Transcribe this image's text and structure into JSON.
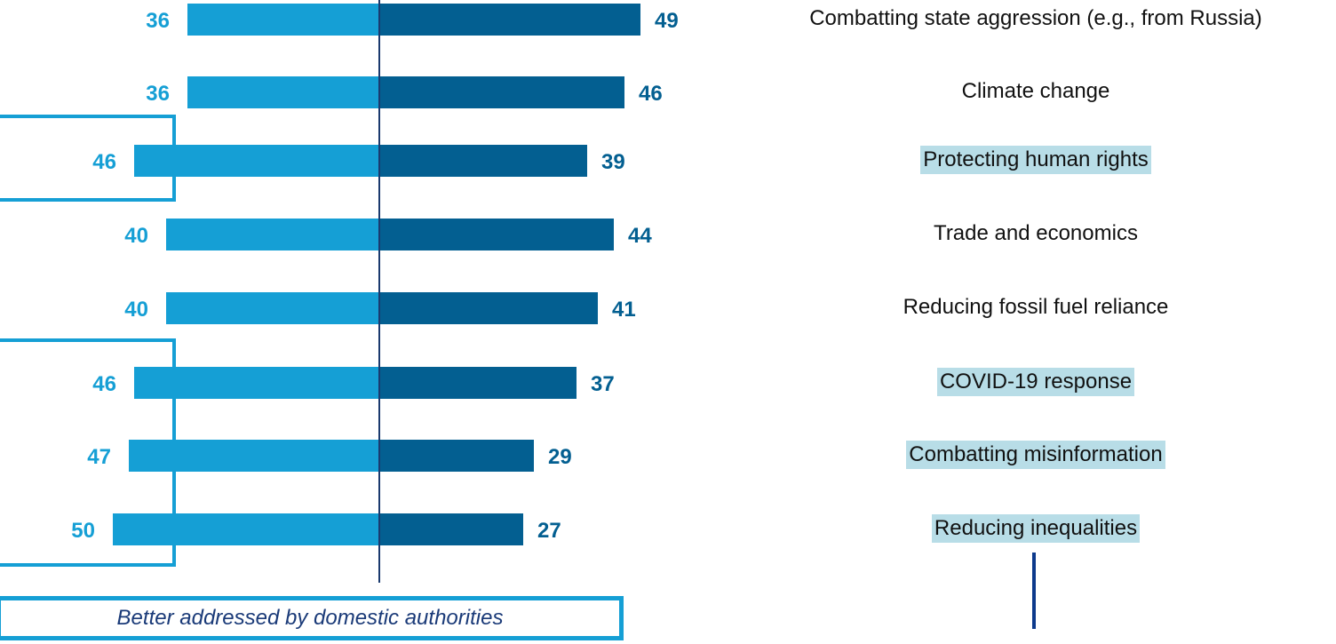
{
  "colors": {
    "left_bar": "#159fd5",
    "right_bar": "#035f91",
    "left_label": "#159fd5",
    "right_label": "#035f91",
    "highlight": "#b8dde7",
    "axis": "#1a3a6e",
    "bracket": "#159fd5"
  },
  "chart_data": {
    "type": "bar",
    "orientation": "horizontal-diverging",
    "categories": [
      "Combatting state aggression (e.g., from Russia)",
      "Climate change",
      "Protecting human rights",
      "Trade and economics",
      "Reducing fossil fuel reliance",
      "COVID-19 response",
      "Combatting misinformation",
      "Reducing inequalities"
    ],
    "highlighted": [
      false,
      false,
      true,
      false,
      false,
      true,
      true,
      true
    ],
    "series": [
      {
        "values": [
          36,
          36,
          46,
          40,
          40,
          46,
          47,
          50
        ]
      },
      {
        "values": [
          49,
          46,
          39,
          44,
          41,
          37,
          29,
          27
        ]
      }
    ],
    "annotations": [
      "Better addressed by domestic authorities"
    ]
  }
}
